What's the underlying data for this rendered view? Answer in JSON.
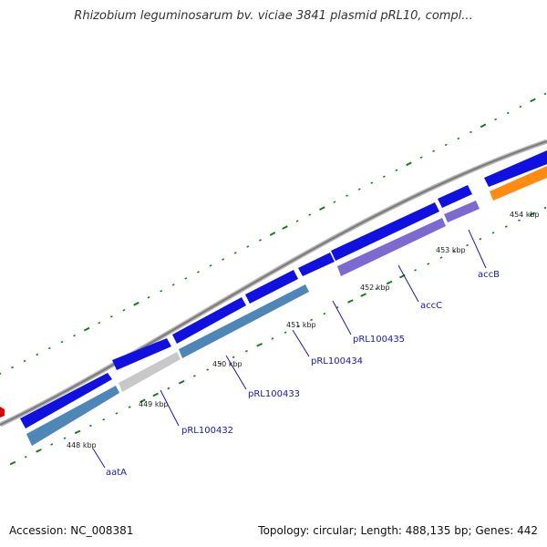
{
  "title": "Rhizobium leguminosarum bv. viciae 3841 plasmid pRL10, compl...",
  "footer": {
    "accession": "Accession: NC_008381",
    "stats": "Topology: circular; Length: 488,135 bp; Genes: 442"
  },
  "colors": {
    "backbone": "#8c8c8c",
    "cds_forward": "#1010e0",
    "cds_reverse_blue": "#4f86b8",
    "cds_reverse_gray": "#c8c8c8",
    "cds_reverse_purple": "#7c6ad0",
    "cds_orange": "#ff8c10",
    "marker_red": "#e00000",
    "gc_ticks": "#1f7a1f",
    "label": "#1a1aa8"
  },
  "ruler": [
    {
      "label": "448 kbp",
      "position_kbp": 448
    },
    {
      "label": "449 kbp",
      "position_kbp": 449
    },
    {
      "label": "450 kbp",
      "position_kbp": 450
    },
    {
      "label": "451 kbp",
      "position_kbp": 451
    },
    {
      "label": "452 kbp",
      "position_kbp": 452
    },
    {
      "label": "453 kbp",
      "position_kbp": 453
    },
    {
      "label": "454 kbp",
      "position_kbp": 454
    }
  ],
  "gene_labels": [
    {
      "name": "aatA"
    },
    {
      "name": "pRL100432"
    },
    {
      "name": "pRL100433"
    },
    {
      "name": "pRL100434"
    },
    {
      "name": "pRL100435"
    },
    {
      "name": "accC"
    },
    {
      "name": "accB"
    }
  ]
}
